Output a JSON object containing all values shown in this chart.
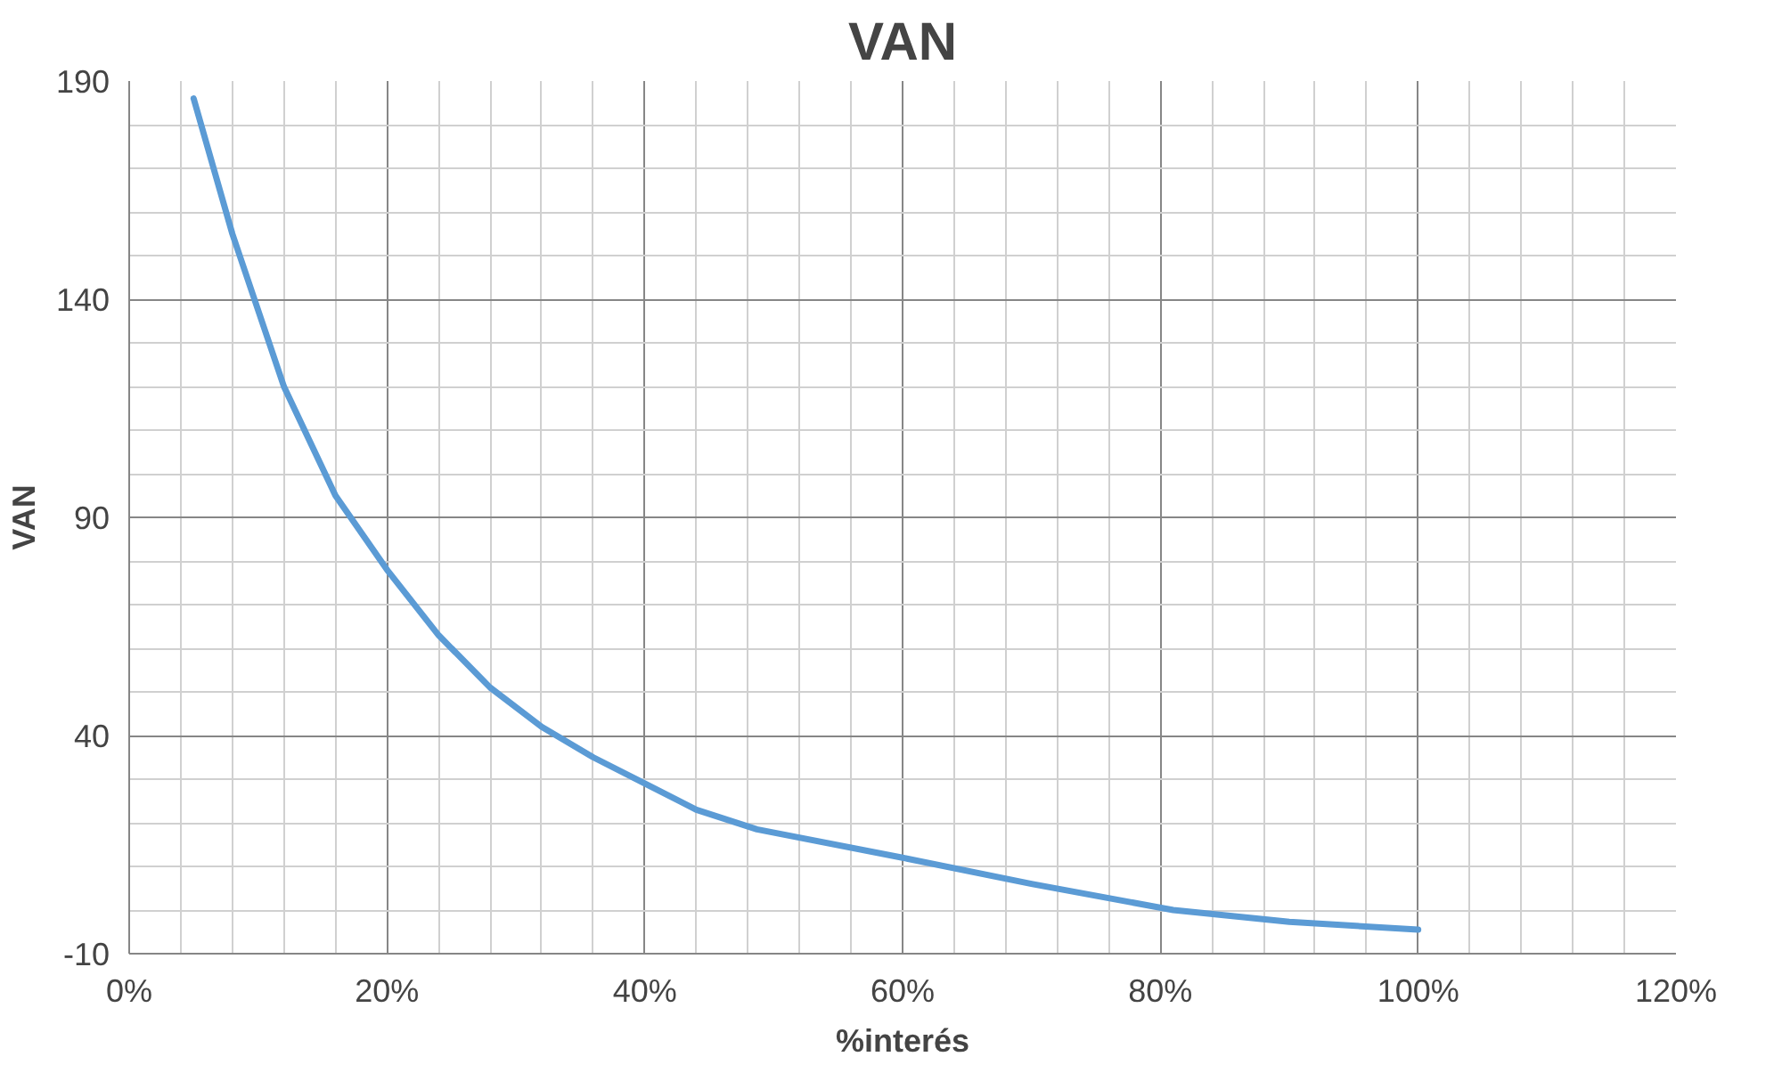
{
  "chart_data": {
    "type": "line",
    "title": "VAN",
    "xlabel": "%interés",
    "ylabel": "VAN",
    "x": [
      0.05,
      0.08,
      0.12,
      0.16,
      0.2,
      0.24,
      0.28,
      0.32,
      0.36,
      0.4,
      0.44,
      0.487,
      0.6,
      0.7,
      0.81,
      0.9,
      1.0
    ],
    "series": [
      {
        "color": "#5b9bd5",
        "values": [
          186,
          155,
          120,
          95,
          78,
          63,
          51,
          42,
          35,
          29,
          23,
          18.5,
          12,
          6,
          0,
          -2.7,
          -4.5
        ]
      }
    ],
    "xlim": [
      0,
      1.2
    ],
    "xticks": [
      {
        "value": 0,
        "label": "0%"
      },
      {
        "value": 0.2,
        "label": "20%"
      },
      {
        "value": 0.4,
        "label": "40%"
      },
      {
        "value": 0.6,
        "label": "60%"
      },
      {
        "value": 0.8,
        "label": "80%"
      },
      {
        "value": 1.0,
        "label": "100%"
      },
      {
        "value": 1.2,
        "label": "120%"
      }
    ],
    "ylim": [
      -10,
      190
    ],
    "yticks": [
      -10,
      40,
      90,
      140,
      190
    ],
    "grid": true,
    "marker": "none",
    "line_style": "solid"
  }
}
